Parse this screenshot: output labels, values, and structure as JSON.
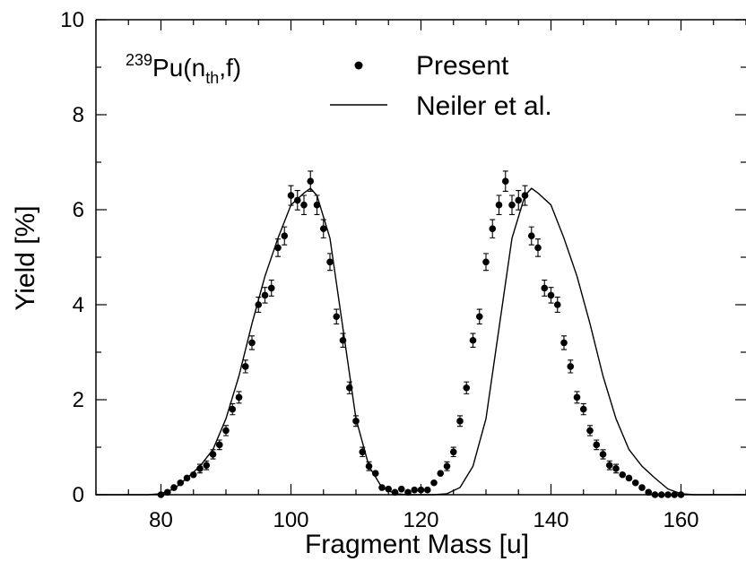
{
  "chart_data": {
    "type": "scatter",
    "xlabel": "Fragment Mass [u]",
    "ylabel": "Yield [%]",
    "xlim": [
      70,
      170
    ],
    "ylim": [
      0,
      10
    ],
    "x_ticks": [
      "80",
      "100",
      "120",
      "140",
      "160"
    ],
    "y_ticks": [
      "0",
      "2",
      "4",
      "6",
      "8",
      "10"
    ],
    "grid": false,
    "legend_position": "top",
    "reaction": {
      "mass": "239",
      "element": "Pu(n",
      "sub": "th",
      "tail": ",f)"
    },
    "series": [
      {
        "name": "Present",
        "style": "points-with-errorbars",
        "x": [
          80,
          81,
          82,
          83,
          84,
          85,
          86,
          87,
          88,
          89,
          90,
          91,
          92,
          93,
          94,
          95,
          96,
          97,
          98,
          99,
          100,
          101,
          102,
          103,
          104,
          105,
          106,
          107,
          108,
          109,
          110,
          111,
          112,
          113,
          114,
          115,
          116,
          117,
          118,
          119,
          120,
          121,
          122,
          123,
          124,
          125,
          126,
          127,
          128,
          129,
          130,
          131,
          132,
          133,
          134,
          135,
          136,
          137,
          138,
          139,
          140,
          141,
          142,
          143,
          144,
          145,
          146,
          147,
          148,
          149,
          150,
          151,
          152,
          153,
          154,
          155,
          156,
          157,
          158,
          159,
          160
        ],
        "y": [
          0.0,
          0.05,
          0.15,
          0.25,
          0.35,
          0.42,
          0.55,
          0.62,
          0.85,
          1.05,
          1.35,
          1.8,
          2.05,
          2.7,
          3.2,
          4.0,
          4.2,
          4.35,
          5.2,
          5.45,
          6.3,
          6.2,
          6.1,
          6.6,
          6.1,
          5.6,
          4.9,
          3.75,
          3.25,
          2.25,
          1.55,
          0.9,
          0.6,
          0.45,
          0.15,
          0.12,
          0.05,
          0.12,
          0.05,
          0.1,
          0.1,
          0.1,
          0.25,
          0.45,
          0.6,
          0.9,
          1.55,
          2.25,
          3.25,
          3.75,
          4.9,
          5.6,
          6.1,
          6.6,
          6.1,
          6.2,
          6.3,
          5.45,
          5.2,
          4.35,
          4.2,
          4.0,
          3.2,
          2.7,
          2.05,
          1.8,
          1.35,
          1.05,
          0.85,
          0.62,
          0.55,
          0.42,
          0.35,
          0.25,
          0.15,
          0.05,
          0.0,
          0.0,
          0.0,
          0.0,
          0.0
        ]
      },
      {
        "name": "Neiler et al.",
        "style": "line",
        "x": [
          70,
          78,
          80,
          82,
          84,
          86,
          88,
          90,
          92,
          94,
          96,
          98,
          100,
          102,
          103,
          104,
          106,
          108,
          110,
          112,
          114,
          116,
          118,
          120,
          122,
          124,
          126,
          128,
          130,
          132,
          134,
          136,
          137,
          138,
          140,
          142,
          144,
          146,
          148,
          150,
          152,
          154,
          156,
          158,
          160,
          162,
          170
        ],
        "y": [
          0.0,
          0.0,
          0.02,
          0.12,
          0.35,
          0.6,
          0.95,
          1.6,
          2.5,
          3.6,
          4.6,
          5.4,
          6.1,
          6.35,
          6.45,
          6.3,
          5.4,
          3.5,
          1.6,
          0.6,
          0.15,
          0.02,
          0.0,
          0.0,
          0.0,
          0.02,
          0.15,
          0.6,
          1.6,
          3.5,
          5.4,
          6.3,
          6.45,
          6.35,
          6.1,
          5.4,
          4.6,
          3.6,
          2.5,
          1.6,
          0.95,
          0.6,
          0.35,
          0.12,
          0.02,
          0.0,
          0.0
        ]
      }
    ]
  }
}
